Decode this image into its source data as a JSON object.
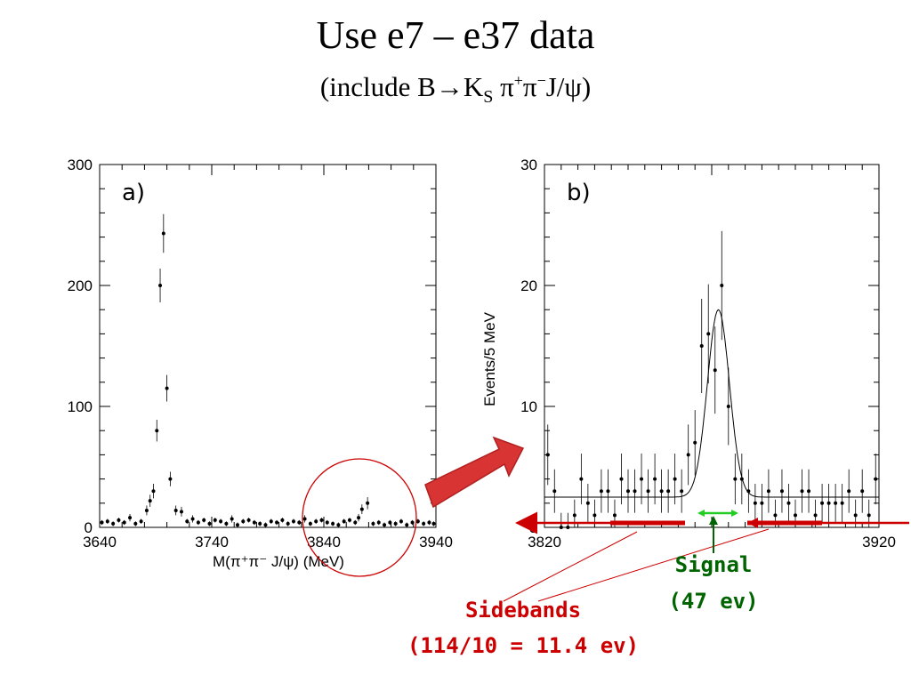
{
  "page": {
    "title": "Use e7 – e37 data",
    "subtitle": {
      "prefix": "(include B",
      "arrow": "→",
      "k": "K",
      "k_sub": "S",
      "pi1": " π",
      "pi1_sup": "+",
      "pi2": "π",
      "pi2_sup": "−",
      "suffix": "J/ψ)"
    }
  },
  "chart_data": [
    {
      "type": "scatter",
      "panel_label": "a)",
      "xlabel": "M(π⁺π⁻ J/ψ) (MeV)",
      "ylabel": "",
      "xlim": [
        3640,
        3940
      ],
      "ylim": [
        0,
        300
      ],
      "xticks": [
        "3640",
        "3740",
        "3840",
        "3940"
      ],
      "yticks": [
        "0",
        "100",
        "200",
        "300"
      ],
      "xtick_values": [
        3640,
        3740,
        3840,
        3940
      ],
      "ytick_values": [
        0,
        100,
        200,
        300
      ],
      "series": [
        {
          "name": "data",
          "x": [
            3642,
            3647,
            3652,
            3657,
            3662,
            3667,
            3672,
            3677,
            3682,
            3685,
            3688,
            3691,
            3694,
            3697,
            3700,
            3703,
            3708,
            3713,
            3718,
            3723,
            3728,
            3733,
            3738,
            3743,
            3748,
            3753,
            3758,
            3763,
            3768,
            3773,
            3778,
            3783,
            3788,
            3793,
            3798,
            3803,
            3808,
            3813,
            3818,
            3823,
            3828,
            3833,
            3838,
            3843,
            3848,
            3853,
            3858,
            3863,
            3868,
            3871,
            3874,
            3879,
            3884,
            3889,
            3894,
            3899,
            3904,
            3909,
            3914,
            3919,
            3924,
            3929,
            3934,
            3938
          ],
          "y": [
            4,
            5,
            3,
            6,
            4,
            8,
            3,
            5,
            14,
            22,
            30,
            80,
            200,
            243,
            115,
            40,
            14,
            13,
            5,
            7,
            4,
            6,
            3,
            6,
            5,
            3,
            7,
            2,
            5,
            6,
            4,
            3,
            2,
            5,
            4,
            6,
            3,
            5,
            4,
            7,
            3,
            5,
            6,
            4,
            3,
            2,
            5,
            6,
            4,
            8,
            15,
            20,
            3,
            4,
            2,
            4,
            3,
            5,
            2,
            4,
            5,
            3,
            4,
            3
          ],
          "yerr": [
            2,
            2,
            2,
            2,
            2,
            3,
            2,
            2,
            4,
            5,
            6,
            9,
            14,
            16,
            11,
            6,
            4,
            4,
            2,
            3,
            2,
            2,
            2,
            2,
            2,
            2,
            3,
            2,
            2,
            2,
            2,
            2,
            2,
            2,
            2,
            2,
            2,
            2,
            2,
            3,
            2,
            2,
            2,
            2,
            2,
            2,
            2,
            2,
            2,
            3,
            4,
            5,
            2,
            2,
            2,
            2,
            2,
            2,
            2,
            2,
            2,
            2,
            2,
            2
          ]
        }
      ]
    },
    {
      "type": "scatter",
      "panel_label": "b)",
      "xlabel": "",
      "ylabel": "Events/5 MeV",
      "xlim": [
        3820,
        3920
      ],
      "ylim": [
        0,
        30
      ],
      "xticks": [
        "3820",
        "3920"
      ],
      "yticks": [
        "0",
        "10",
        "20",
        "30"
      ],
      "xtick_values": [
        3820,
        3920
      ],
      "ytick_values": [
        0,
        10,
        20,
        30
      ],
      "series": [
        {
          "name": "data",
          "x": [
            3821,
            3823,
            3825,
            3827,
            3829,
            3831,
            3833,
            3835,
            3837,
            3839,
            3841,
            3843,
            3845,
            3847,
            3849,
            3851,
            3853,
            3855,
            3857,
            3859,
            3861,
            3863,
            3865,
            3867,
            3869,
            3871,
            3873,
            3875,
            3877,
            3879,
            3881,
            3883,
            3885,
            3887,
            3889,
            3891,
            3893,
            3895,
            3897,
            3899,
            3901,
            3903,
            3905,
            3907,
            3909,
            3911,
            3913,
            3915,
            3917,
            3919
          ],
          "y": [
            6,
            3,
            0,
            0,
            1,
            4,
            2,
            1,
            3,
            3,
            1,
            4,
            3,
            3,
            4,
            3,
            4,
            3,
            3,
            4,
            3,
            6,
            7,
            15,
            16,
            13,
            20,
            10,
            4,
            4,
            3,
            2,
            2,
            3,
            1,
            3,
            2,
            1,
            3,
            3,
            1,
            2,
            2,
            2,
            2,
            3,
            1,
            3,
            1,
            4
          ],
          "yerr": [
            2.5,
            1.8,
            1.2,
            1.2,
            1.3,
            2.1,
            1.6,
            1.3,
            1.8,
            1.8,
            1.3,
            2.1,
            1.8,
            1.8,
            2.1,
            1.8,
            2.1,
            1.8,
            1.8,
            2.1,
            1.8,
            2.5,
            2.7,
            3.9,
            4.1,
            3.6,
            4.5,
            3.2,
            2.1,
            2.1,
            1.8,
            1.6,
            1.6,
            1.8,
            1.3,
            1.8,
            1.6,
            1.3,
            1.8,
            1.8,
            1.3,
            1.6,
            1.6,
            1.6,
            1.6,
            1.8,
            1.3,
            1.8,
            1.3,
            2.1
          ]
        },
        {
          "name": "fit",
          "model": "gaussian",
          "peak_x": 3872,
          "sigma": 3.3,
          "amplitude": 15.5,
          "background": 2.5
        }
      ]
    }
  ],
  "annotations": {
    "signal_label": "Signal",
    "signal_count": "(47 ev)",
    "sidebands_label": "Sidebands",
    "sidebands_count": "(114/10 = 11.4 ev)",
    "colors": {
      "signal": "#006400",
      "signal_band": "#22cc22",
      "sidebands": "#cc0000",
      "callout_arrow": "#d93434",
      "circle": "#cc0000"
    }
  }
}
